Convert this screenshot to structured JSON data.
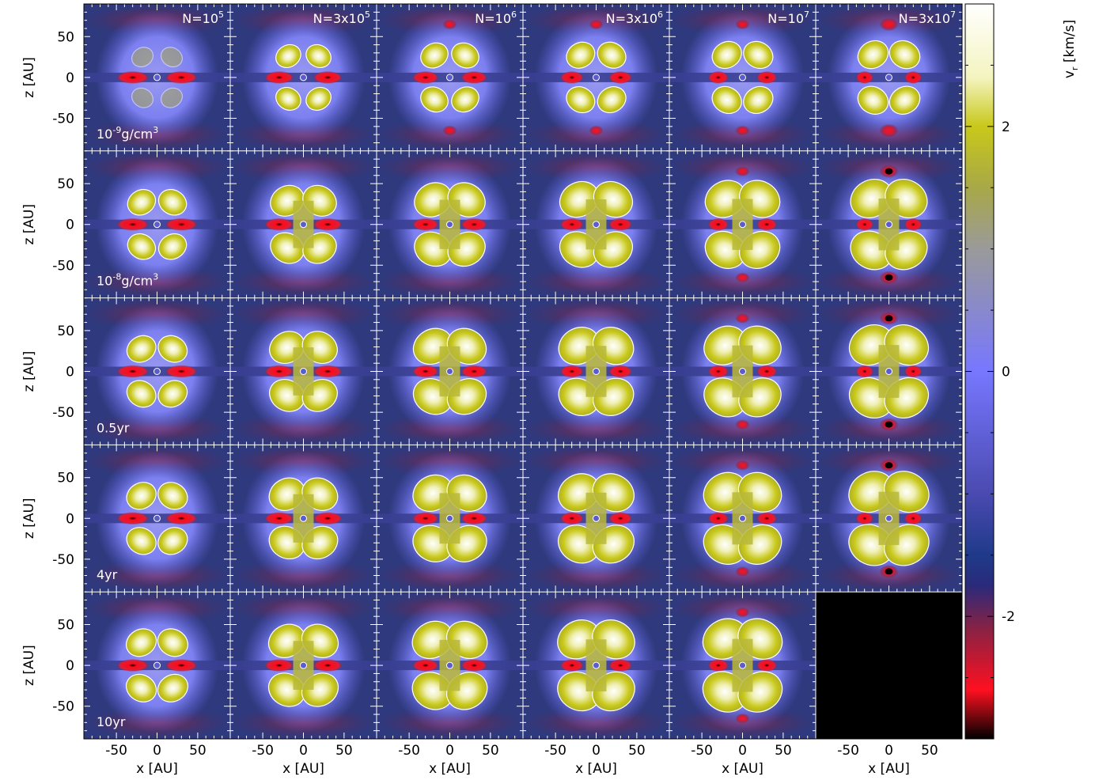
{
  "chart_data": {
    "type": "heatmap",
    "grid": {
      "rows": 5,
      "cols": 6
    },
    "columns": [
      {
        "label_pre": "N=10",
        "label_sup": "5",
        "label_post": ""
      },
      {
        "label_pre": "N=3x10",
        "label_sup": "5",
        "label_post": ""
      },
      {
        "label_pre": "N=10",
        "label_sup": "6",
        "label_post": ""
      },
      {
        "label_pre": "N=3x10",
        "label_sup": "6",
        "label_post": ""
      },
      {
        "label_pre": "N=10",
        "label_sup": "7",
        "label_post": ""
      },
      {
        "label_pre": "N=3x10",
        "label_sup": "7",
        "label_post": ""
      }
    ],
    "rows": [
      {
        "label_pre": "10",
        "label_sup": "-9",
        "label_post": "g/cm",
        "label_sup2": "3"
      },
      {
        "label_pre": "10",
        "label_sup": "-8",
        "label_post": "g/cm",
        "label_sup2": "3"
      },
      {
        "label_pre": "0.5yr",
        "label_sup": "",
        "label_post": "",
        "label_sup2": ""
      },
      {
        "label_pre": "4yr",
        "label_sup": "",
        "label_post": "",
        "label_sup2": ""
      },
      {
        "label_pre": "10yr",
        "label_sup": "",
        "label_post": "",
        "label_sup2": ""
      }
    ],
    "empty_panels": [
      [
        4,
        5
      ]
    ],
    "xlabel": "x [AU]",
    "ylabel": "z [AU]",
    "xlim": [
      -90,
      90
    ],
    "ylim": [
      -90,
      90
    ],
    "xticks": [
      -50,
      0,
      50
    ],
    "yticks": [
      50,
      0,
      -50
    ],
    "xtick_labels": [
      "-50",
      "0",
      "50"
    ],
    "ytick_labels": [
      "50",
      "0",
      "-50"
    ],
    "colorbar": {
      "label_main": "v",
      "label_sub": "r",
      "label_unit": " [km/s]",
      "range": [
        -3,
        3
      ],
      "ticks": [
        2,
        0,
        -2
      ],
      "tick_labels": [
        "2",
        "0",
        "-2"
      ],
      "stops": [
        {
          "v": 3.0,
          "c": "#ffffff"
        },
        {
          "v": 2.4,
          "c": "#f4f4c0"
        },
        {
          "v": 2.0,
          "c": "#c8c81a"
        },
        {
          "v": 1.5,
          "c": "#a8a848"
        },
        {
          "v": 1.0,
          "c": "#9a9a9a"
        },
        {
          "v": 0.0,
          "c": "#7777ff"
        },
        {
          "v": -1.0,
          "c": "#4a4ab0"
        },
        {
          "v": -1.5,
          "c": "#1f3a8a"
        },
        {
          "v": -1.75,
          "c": "#2a2a7a"
        },
        {
          "v": -2.1,
          "c": "#882244"
        },
        {
          "v": -2.6,
          "c": "#ff1020"
        },
        {
          "v": -3.0,
          "c": "#000000"
        }
      ]
    }
  }
}
